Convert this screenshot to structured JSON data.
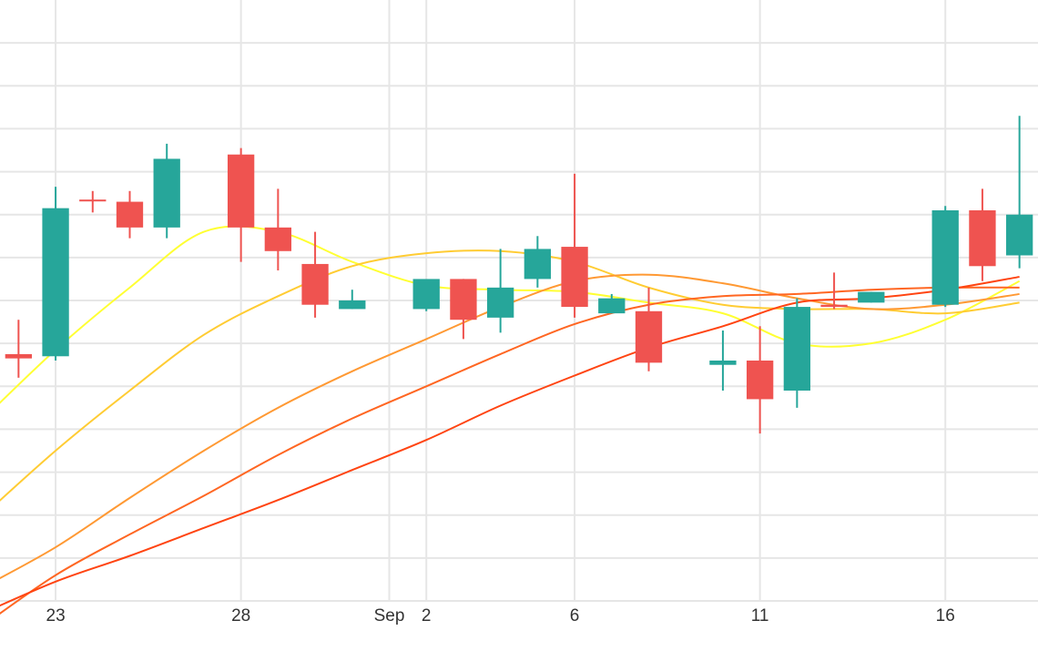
{
  "chart_data": {
    "type": "candlestick",
    "x_tick_labels": [
      {
        "date": "2023-08-23",
        "label": "23"
      },
      {
        "date": "2023-08-28",
        "label": "28"
      },
      {
        "date": "2023-09-01",
        "label": "Sep"
      },
      {
        "date": "2023-09-02",
        "label": "2"
      },
      {
        "date": "2023-09-06",
        "label": "6"
      },
      {
        "date": "2023-09-11",
        "label": "11"
      },
      {
        "date": "2023-09-16",
        "label": "16"
      }
    ],
    "xlim": [
      "2023-08-21T12:00",
      "2023-09-18T12:00"
    ],
    "ylim": [
      0,
      14
    ],
    "grid": true,
    "colors": {
      "up": "#26a69a",
      "down": "#ef5350",
      "grid": "#e6e6e6",
      "ma_lines": [
        "#ffff33",
        "#ffcc33",
        "#ff9933",
        "#ff6622",
        "#ff4411"
      ]
    },
    "candles": [
      {
        "date": "2023-08-22",
        "open": 5.75,
        "high": 6.55,
        "low": 5.2,
        "close": 5.65
      },
      {
        "date": "2023-08-23",
        "open": 5.7,
        "high": 9.65,
        "low": 5.6,
        "close": 9.15
      },
      {
        "date": "2023-08-24",
        "open": 9.35,
        "high": 9.55,
        "low": 9.05,
        "close": 9.33
      },
      {
        "date": "2023-08-25",
        "open": 9.3,
        "high": 9.55,
        "low": 8.45,
        "close": 8.7
      },
      {
        "date": "2023-08-26",
        "open": 8.7,
        "high": 10.65,
        "low": 8.45,
        "close": 10.3
      },
      {
        "date": "2023-08-28",
        "open": 10.4,
        "high": 10.55,
        "low": 7.9,
        "close": 8.7
      },
      {
        "date": "2023-08-29",
        "open": 8.7,
        "high": 9.6,
        "low": 7.7,
        "close": 8.15
      },
      {
        "date": "2023-08-30",
        "open": 7.85,
        "high": 8.6,
        "low": 6.6,
        "close": 6.9
      },
      {
        "date": "2023-08-31",
        "open": 6.8,
        "high": 7.25,
        "low": 6.8,
        "close": 7.0
      },
      {
        "date": "2023-09-02",
        "open": 6.8,
        "high": 7.4,
        "low": 6.75,
        "close": 7.5
      },
      {
        "date": "2023-09-03",
        "open": 7.5,
        "high": 7.5,
        "low": 6.1,
        "close": 6.55
      },
      {
        "date": "2023-09-04",
        "open": 6.6,
        "high": 8.2,
        "low": 6.25,
        "close": 7.3
      },
      {
        "date": "2023-09-05",
        "open": 7.5,
        "high": 8.5,
        "low": 7.3,
        "close": 8.2
      },
      {
        "date": "2023-09-06",
        "open": 8.25,
        "high": 9.95,
        "low": 6.6,
        "close": 6.85
      },
      {
        "date": "2023-09-07",
        "open": 6.7,
        "high": 7.15,
        "low": 6.7,
        "close": 7.05
      },
      {
        "date": "2023-09-08",
        "open": 6.75,
        "high": 7.3,
        "low": 5.35,
        "close": 5.55
      },
      {
        "date": "2023-09-10",
        "open": 5.5,
        "high": 6.3,
        "low": 4.9,
        "close": 5.6
      },
      {
        "date": "2023-09-11",
        "open": 5.6,
        "high": 6.4,
        "low": 3.9,
        "close": 4.7
      },
      {
        "date": "2023-09-12",
        "open": 4.9,
        "high": 7.05,
        "low": 4.5,
        "close": 6.85
      },
      {
        "date": "2023-09-13",
        "open": 6.9,
        "high": 7.65,
        "low": 6.8,
        "close": 6.85
      },
      {
        "date": "2023-09-14",
        "open": 6.95,
        "high": 7.2,
        "low": 6.95,
        "close": 7.2
      },
      {
        "date": "2023-09-16",
        "open": 6.9,
        "high": 9.2,
        "low": 6.85,
        "close": 9.1
      },
      {
        "date": "2023-09-17",
        "open": 9.1,
        "high": 9.6,
        "low": 7.45,
        "close": 7.8
      },
      {
        "date": "2023-09-18",
        "open": 8.05,
        "high": 11.3,
        "low": 7.75,
        "close": 9.0
      }
    ],
    "series": [
      {
        "type": "line",
        "color": "#ffff33",
        "x": [
          "2023-08-21",
          "2023-08-23",
          "2023-08-25",
          "2023-08-27",
          "2023-08-29",
          "2023-08-31",
          "2023-09-02",
          "2023-09-04",
          "2023-09-06",
          "2023-09-08",
          "2023-09-10",
          "2023-09-12",
          "2023-09-14",
          "2023-09-16",
          "2023-09-18"
        ],
        "y": [
          4.2,
          5.85,
          7.3,
          8.6,
          8.6,
          7.9,
          7.35,
          7.25,
          7.2,
          6.95,
          6.7,
          6.0,
          6.0,
          6.55,
          7.45
        ]
      },
      {
        "type": "line",
        "color": "#ffcc33",
        "x": [
          "2023-08-21",
          "2023-08-23",
          "2023-08-25",
          "2023-08-27",
          "2023-08-29",
          "2023-08-31",
          "2023-09-02",
          "2023-09-04",
          "2023-09-06",
          "2023-09-08",
          "2023-09-10",
          "2023-09-12",
          "2023-09-14",
          "2023-09-16",
          "2023-09-18"
        ],
        "y": [
          1.95,
          3.5,
          4.9,
          6.2,
          7.1,
          7.8,
          8.1,
          8.15,
          7.9,
          7.3,
          6.9,
          6.8,
          6.8,
          6.7,
          6.95
        ]
      },
      {
        "type": "line",
        "color": "#ff9933",
        "x": [
          "2023-08-21",
          "2023-08-23",
          "2023-08-25",
          "2023-08-27",
          "2023-08-29",
          "2023-08-31",
          "2023-09-02",
          "2023-09-04",
          "2023-09-06",
          "2023-09-08",
          "2023-09-10",
          "2023-09-12",
          "2023-09-14",
          "2023-09-16",
          "2023-09-18"
        ],
        "y": [
          0.3,
          1.25,
          2.4,
          3.5,
          4.5,
          5.35,
          6.1,
          6.85,
          7.45,
          7.6,
          7.4,
          7.05,
          6.8,
          6.9,
          7.15
        ]
      },
      {
        "type": "line",
        "color": "#ff6622",
        "x": [
          "2023-08-21",
          "2023-08-23",
          "2023-08-25",
          "2023-08-27",
          "2023-08-29",
          "2023-08-31",
          "2023-09-02",
          "2023-09-04",
          "2023-09-06",
          "2023-09-08",
          "2023-09-10",
          "2023-09-12",
          "2023-09-14",
          "2023-09-16",
          "2023-09-18"
        ],
        "y": [
          -0.6,
          0.6,
          1.55,
          2.45,
          3.4,
          4.25,
          5.0,
          5.75,
          6.45,
          6.9,
          7.1,
          7.15,
          7.25,
          7.3,
          7.3
        ]
      },
      {
        "type": "line",
        "color": "#ff4411",
        "x": [
          "2023-08-21",
          "2023-08-23",
          "2023-08-25",
          "2023-08-27",
          "2023-08-29",
          "2023-08-31",
          "2023-09-02",
          "2023-09-04",
          "2023-09-06",
          "2023-09-08",
          "2023-09-10",
          "2023-09-12",
          "2023-09-14",
          "2023-09-16",
          "2023-09-18"
        ],
        "y": [
          -0.3,
          0.45,
          1.05,
          1.7,
          2.35,
          3.05,
          3.75,
          4.55,
          5.25,
          5.9,
          6.4,
          6.95,
          7.05,
          7.25,
          7.55
        ]
      }
    ]
  }
}
